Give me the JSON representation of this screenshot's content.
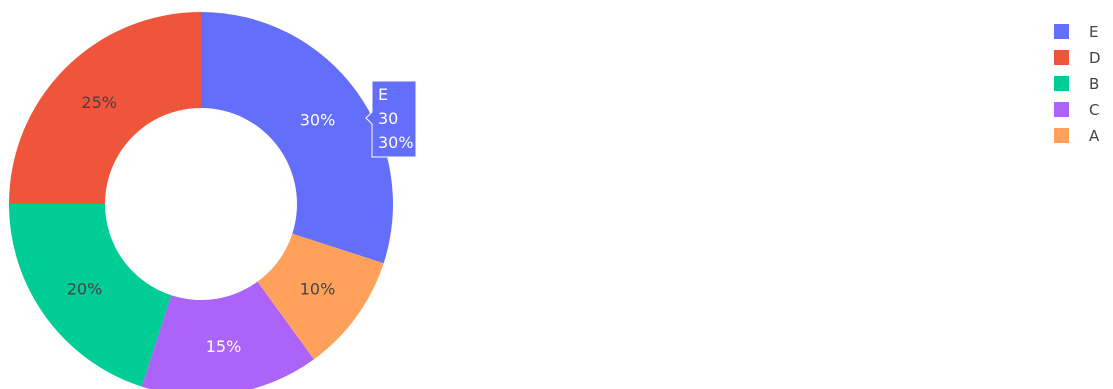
{
  "chart_data": {
    "type": "pie",
    "hole": 0.5,
    "sort": "descending",
    "direction": "clockwise",
    "start_angle_deg": 90,
    "slices": [
      {
        "label": "E",
        "value": 30,
        "percent_text": "30%",
        "color": "#636efa"
      },
      {
        "label": "A",
        "value": 10,
        "percent_text": "10%",
        "color": "#ffa15a"
      },
      {
        "label": "C",
        "value": 15,
        "percent_text": "15%",
        "color": "#ab63fa"
      },
      {
        "label": "B",
        "value": 20,
        "percent_text": "20%",
        "color": "#00cc96"
      },
      {
        "label": "D",
        "value": 25,
        "percent_text": "25%",
        "color": "#ef553b"
      }
    ],
    "legend": {
      "position": "top-right",
      "entries": [
        {
          "label": "E",
          "color": "#636efa"
        },
        {
          "label": "D",
          "color": "#ef553b"
        },
        {
          "label": "B",
          "color": "#00cc96"
        },
        {
          "label": "C",
          "color": "#ab63fa"
        },
        {
          "label": "A",
          "color": "#ffa15a"
        }
      ]
    },
    "hover": {
      "slice": "E",
      "lines": [
        "E",
        "30",
        "30%"
      ],
      "color": "#636efa"
    }
  }
}
